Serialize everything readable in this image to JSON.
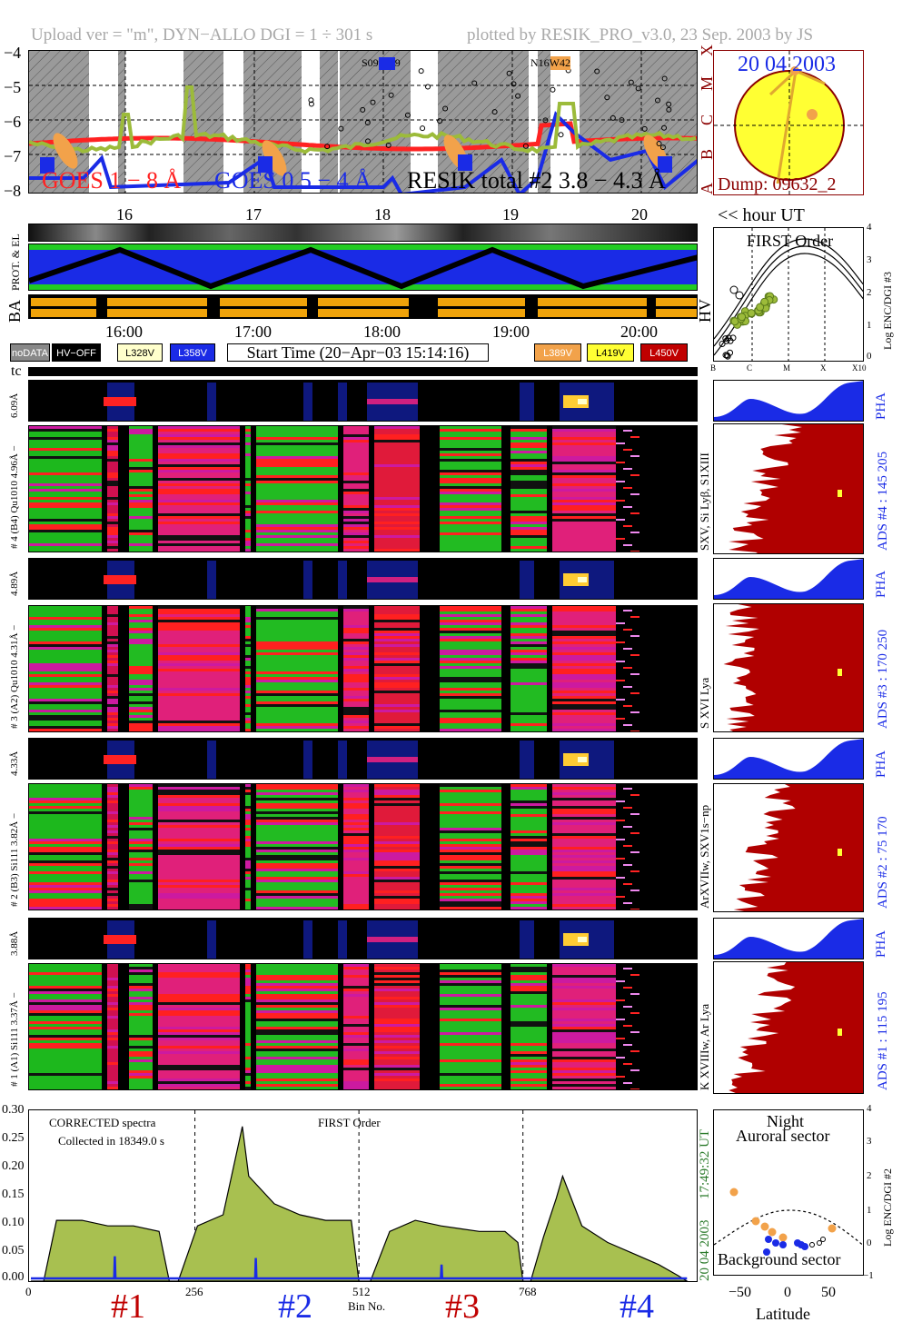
{
  "header": {
    "left": "Upload ver = \"m\", DYN−ALLO DGI =   1 ÷ 301 s",
    "right": "plotted by RESIK_PRO_v3.0, 23 Sep. 2003 by JS"
  },
  "goes_panel": {
    "y_ticks": [
      "−4",
      "−5",
      "−6",
      "−7",
      "−8"
    ],
    "flare_classes": [
      "X",
      "M",
      "C",
      "B",
      "A"
    ],
    "legend_goes18": "GOES 1 − 8 Å",
    "legend_goes054": "GOES 0.5 − 4 Å",
    "legend_resik": "RESIK total #2  3.8 − 4.3 Å",
    "region1": "S09",
    "region1_suffix": "9",
    "region2": "N16W42",
    "colors": {
      "goes18": "#ff2222",
      "goes054": "#1a2be6",
      "resik": "#9cbb3a"
    }
  },
  "sun_panel": {
    "date": "20 04 2003",
    "dump": "Dump: 09632_2"
  },
  "hour_axis": {
    "labels": [
      "16",
      "17",
      "18",
      "19",
      "20"
    ],
    "unit": "<< hour UT"
  },
  "status_panel": {
    "prot_el_label": "PROT. & EL",
    "ba_label": "BA",
    "hv_label": "HV"
  },
  "time_axis": {
    "labels": [
      "16:00",
      "17:00",
      "18:00",
      "19:00",
      "20:00"
    ]
  },
  "legend_row": {
    "nodata": "noDATA",
    "hvoff": "HV−OFF",
    "l328": "L328V",
    "l358": "L358V",
    "start_time": "Start Time (20−Apr−03 15:14:16)",
    "l389": "L389V",
    "l419": "L419V",
    "l450": "L450V"
  },
  "tc_label": "tc",
  "first_order": {
    "title": "FIRST Order",
    "y_label": "Log ENC/DGI #3",
    "y_ticks": [
      "4",
      "3",
      "2",
      "1",
      "0"
    ],
    "x_ticks": [
      "B",
      "C",
      "M",
      "X",
      "X10"
    ]
  },
  "spectro_panels": [
    {
      "pha_label": "6.09Å",
      "main_label": "# 4 (B4) Qu1010 4.96Å −",
      "lines": "SXV, Si Lyβ, S1XIII",
      "ads": "ADS #4 :  145 205",
      "pha": "PHA"
    },
    {
      "pha_label": "4.89Å",
      "main_label": "# 3 (A2) Qu1010 4.31Å −",
      "lines": "S XVI Lya",
      "ads": "ADS #3 :  170 250",
      "pha": "PHA"
    },
    {
      "pha_label": "4.33Å",
      "main_label": "# 2 (B3) Si111 3.82Å −",
      "lines": "ArXVIIw, SXV1s−np",
      "ads": "ADS #2 :  75 170",
      "pha": "PHA"
    },
    {
      "pha_label": "3.88Å",
      "main_label": "# 1 (A1) Si111 3.37Å −",
      "lines": "K XVIIIw, Ar Lya",
      "ads": "ADS #1 :  115 195",
      "pha": "PHA"
    }
  ],
  "spectrum_panel": {
    "annotation1": "CORRECTED spectra",
    "annotation2": "Collected in 18349.0 s",
    "annotation3": "FIRST Order",
    "date": "20 04 2003",
    "time": "17:49:32 UT",
    "xlabel": "Bin No.",
    "x_ticks": [
      "0",
      "256",
      "512",
      "768"
    ],
    "y_ticks": [
      "0.30",
      "0.25",
      "0.20",
      "0.15",
      "0.10",
      "0.05",
      "0.00"
    ],
    "channels": [
      "#1",
      "#2",
      "#3",
      "#4"
    ]
  },
  "latitude_panel": {
    "title1": "Night",
    "title2": "Auroral sector",
    "bottom": "Background sector",
    "xlabel": "Latitude",
    "ylabel": "Log ENC/DGI #2",
    "x_ticks": [
      "−50",
      "0",
      "50"
    ],
    "y_ticks": [
      "4",
      "3",
      "2",
      "1",
      "0",
      "−1"
    ]
  },
  "chart_data": {
    "type": "area",
    "title": "",
    "xlabel": "Bin No.",
    "ylabel": "",
    "xlim": [
      0,
      1024
    ],
    "ylim": [
      0.0,
      0.3
    ],
    "series": [
      {
        "name": "CORRECTED spectra",
        "x": [
          0,
          20,
          40,
          80,
          120,
          160,
          200,
          216,
          230,
          260,
          300,
          330,
          340,
          380,
          420,
          460,
          500,
          512,
          530,
          560,
          600,
          640,
          700,
          740,
          760,
          768,
          780,
          800,
          820,
          830,
          860,
          900,
          940,
          980,
          1010,
          1024
        ],
        "values": [
          0.0,
          0.0,
          0.11,
          0.11,
          0.1,
          0.1,
          0.09,
          0.0,
          0.0,
          0.1,
          0.12,
          0.28,
          0.19,
          0.14,
          0.12,
          0.11,
          0.11,
          0.0,
          0.0,
          0.09,
          0.11,
          0.1,
          0.09,
          0.09,
          0.07,
          0.0,
          0.0,
          0.08,
          0.15,
          0.19,
          0.1,
          0.07,
          0.05,
          0.03,
          0.01,
          0.0
        ]
      },
      {
        "name": "background",
        "x": [
          0,
          130,
          131,
          132,
          350,
          351,
          352,
          640,
          641,
          642,
          1024
        ],
        "values": [
          0.005,
          0.005,
          0.045,
          0.005,
          0.005,
          0.042,
          0.005,
          0.005,
          0.03,
          0.005,
          0.005
        ]
      }
    ]
  }
}
